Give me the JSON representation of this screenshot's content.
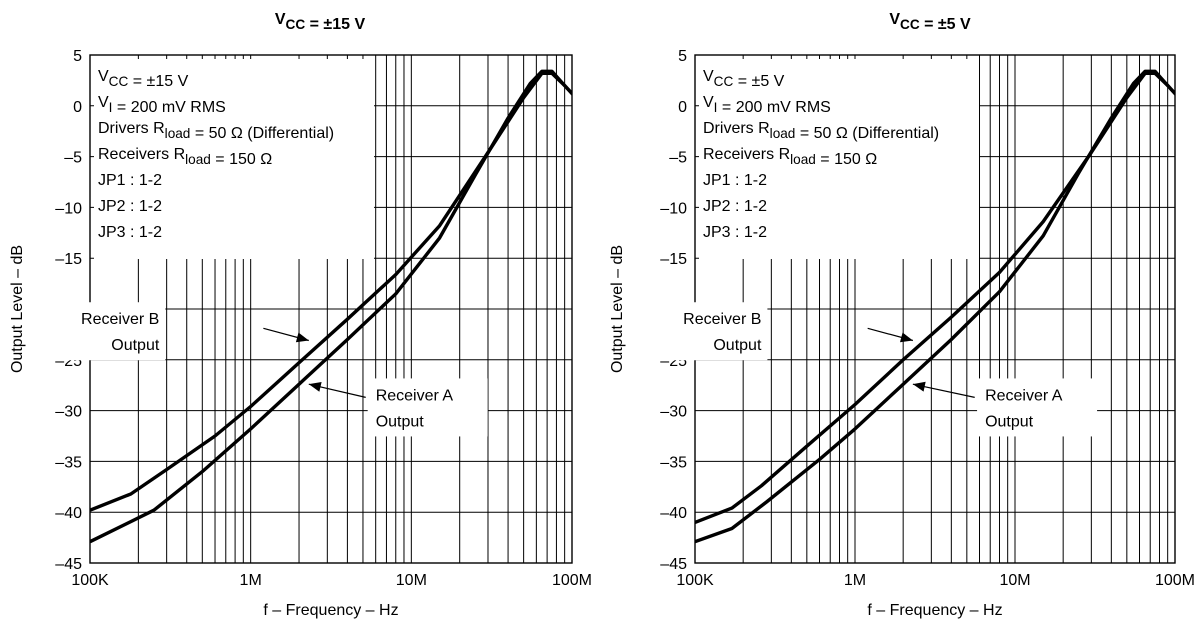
{
  "chart_data": [
    {
      "type": "line",
      "title": "V_CC = ±15 V",
      "title_parts": {
        "main": "V",
        "sub": "CC",
        "rest": " = ±15 V"
      },
      "xlabel": "f – Frequency – Hz",
      "ylabel": "Output Level – dB",
      "xscale": "log",
      "xlim": [
        100000,
        100000000
      ],
      "ylim": [
        -45,
        5
      ],
      "x_ticks": [
        {
          "value": 100000,
          "label": "100K"
        },
        {
          "value": 1000000,
          "label": "1M"
        },
        {
          "value": 10000000,
          "label": "10M"
        },
        {
          "value": 100000000,
          "label": "100M"
        }
      ],
      "y_ticks": [
        {
          "value": 5,
          "label": "5"
        },
        {
          "value": 0,
          "label": "0"
        },
        {
          "value": -5,
          "label": "–5"
        },
        {
          "value": -10,
          "label": "–10"
        },
        {
          "value": -15,
          "label": "–15"
        },
        {
          "value": -20,
          "label": "–20"
        },
        {
          "value": -25,
          "label": "–25"
        },
        {
          "value": -30,
          "label": "–30"
        },
        {
          "value": -35,
          "label": "–35"
        },
        {
          "value": -40,
          "label": "–40"
        },
        {
          "value": -45,
          "label": "–45"
        }
      ],
      "grid": true,
      "conditions": [
        {
          "pre": "V",
          "sub": "CC",
          "post": " = ±15 V"
        },
        {
          "pre": "V",
          "sub": "I",
          "post": " = 200 mV RMS"
        },
        {
          "pre": "Drivers R",
          "sub": "load",
          "post": " = 50 Ω (Differential)"
        },
        {
          "pre": "Receivers R",
          "sub": "load",
          "post": " = 150 Ω"
        },
        {
          "pre": "JP1 : 1-2",
          "sub": "",
          "post": ""
        },
        {
          "pre": "JP2 : 1-2",
          "sub": "",
          "post": ""
        },
        {
          "pre": "JP3 : 1-2",
          "sub": "",
          "post": ""
        }
      ],
      "series": [
        {
          "name": "Receiver B Output",
          "label_lines": [
            "Receiver B",
            "Output"
          ],
          "x": [
            100000,
            180000,
            300000,
            600000,
            1000000,
            2000000,
            4000000,
            8000000,
            15000000,
            30000000,
            50000000,
            65000000,
            75000000,
            90000000,
            110000000
          ],
          "y": [
            -39.8,
            -38.2,
            -35.8,
            -32.5,
            -29.6,
            -25.3,
            -21.0,
            -16.6,
            -11.8,
            -4.6,
            0.8,
            3.2,
            3.2,
            2.0,
            0.5
          ]
        },
        {
          "name": "Receiver A Output",
          "label_lines": [
            "Receiver A",
            "Output"
          ],
          "x": [
            100000,
            250000,
            500000,
            1000000,
            2000000,
            4000000,
            8000000,
            15000000,
            25000000,
            40000000,
            55000000,
            65000000,
            75000000,
            90000000,
            110000000
          ],
          "y": [
            -42.9,
            -39.8,
            -36.0,
            -31.8,
            -27.4,
            -23.0,
            -18.5,
            -13.0,
            -6.8,
            -1.2,
            2.2,
            3.4,
            3.4,
            2.0,
            0.5
          ]
        }
      ],
      "callouts": [
        {
          "series": 0,
          "lines": [
            "Receiver B",
            "Output"
          ],
          "text_x": 270000,
          "text_y": -21.5,
          "align": "end",
          "arrow_to": [
            2300000,
            -23.1
          ],
          "arrow_from": [
            1200000,
            -21.9
          ]
        },
        {
          "series": 1,
          "lines": [
            "Receiver A",
            "Output"
          ],
          "text_x": 6000000,
          "text_y": -29.0,
          "align": "start",
          "arrow_to": [
            2300000,
            -27.4
          ],
          "arrow_from": [
            5200000,
            -28.7
          ]
        }
      ]
    },
    {
      "type": "line",
      "title": "V_CC = ±5 V",
      "title_parts": {
        "main": "V",
        "sub": "CC",
        "rest": " = ±5 V"
      },
      "xlabel": "f – Frequency – Hz",
      "ylabel": "Output Level – dB",
      "xscale": "log",
      "xlim": [
        100000,
        100000000
      ],
      "ylim": [
        -45,
        5
      ],
      "x_ticks": [
        {
          "value": 100000,
          "label": "100K"
        },
        {
          "value": 1000000,
          "label": "1M"
        },
        {
          "value": 10000000,
          "label": "10M"
        },
        {
          "value": 100000000,
          "label": "100M"
        }
      ],
      "y_ticks": [
        {
          "value": 5,
          "label": "5"
        },
        {
          "value": 0,
          "label": "0"
        },
        {
          "value": -5,
          "label": "–5"
        },
        {
          "value": -10,
          "label": "–10"
        },
        {
          "value": -15,
          "label": "–15"
        },
        {
          "value": -20,
          "label": "–20"
        },
        {
          "value": -25,
          "label": "–25"
        },
        {
          "value": -30,
          "label": "–30"
        },
        {
          "value": -35,
          "label": "–35"
        },
        {
          "value": -40,
          "label": "–40"
        },
        {
          "value": -45,
          "label": "–45"
        }
      ],
      "grid": true,
      "conditions": [
        {
          "pre": "V",
          "sub": "CC",
          "post": " = ±5 V"
        },
        {
          "pre": "V",
          "sub": "I",
          "post": " = 200 mV RMS"
        },
        {
          "pre": "Drivers R",
          "sub": "load",
          "post": " = 50 Ω (Differential)"
        },
        {
          "pre": "Receivers R",
          "sub": "load",
          "post": " = 150 Ω"
        },
        {
          "pre": "JP1 : 1-2",
          "sub": "",
          "post": ""
        },
        {
          "pre": "JP2 : 1-2",
          "sub": "",
          "post": ""
        },
        {
          "pre": "JP3 : 1-2",
          "sub": "",
          "post": ""
        }
      ],
      "series": [
        {
          "name": "Receiver B Output",
          "label_lines": [
            "Receiver B",
            "Output"
          ],
          "x": [
            100000,
            170000,
            260000,
            500000,
            1000000,
            2000000,
            4000000,
            8000000,
            15000000,
            30000000,
            50000000,
            65000000,
            75000000,
            90000000,
            110000000
          ],
          "y": [
            -41.0,
            -39.6,
            -37.4,
            -33.5,
            -29.4,
            -25.0,
            -20.8,
            -16.4,
            -11.4,
            -4.6,
            0.8,
            3.2,
            3.2,
            2.0,
            0.5
          ]
        },
        {
          "name": "Receiver A Output",
          "label_lines": [
            "Receiver A",
            "Output"
          ],
          "x": [
            100000,
            170000,
            280000,
            600000,
            1000000,
            2000000,
            4000000,
            8000000,
            15000000,
            25000000,
            40000000,
            55000000,
            65000000,
            75000000,
            90000000,
            110000000
          ],
          "y": [
            -42.9,
            -41.6,
            -39.0,
            -34.8,
            -31.8,
            -27.4,
            -23.0,
            -18.3,
            -12.8,
            -6.6,
            -1.2,
            2.2,
            3.4,
            3.4,
            2.0,
            0.5
          ]
        }
      ],
      "callouts": [
        {
          "series": 0,
          "lines": [
            "Receiver B",
            "Output"
          ],
          "text_x": 260000,
          "text_y": -21.5,
          "align": "end",
          "arrow_to": [
            2300000,
            -23.1
          ],
          "arrow_from": [
            1200000,
            -21.9
          ]
        },
        {
          "series": 1,
          "lines": [
            "Receiver A",
            "Output"
          ],
          "text_x": 6500000,
          "text_y": -29.0,
          "align": "start",
          "arrow_to": [
            2300000,
            -27.4
          ],
          "arrow_from": [
            5600000,
            -28.7
          ]
        }
      ]
    }
  ]
}
